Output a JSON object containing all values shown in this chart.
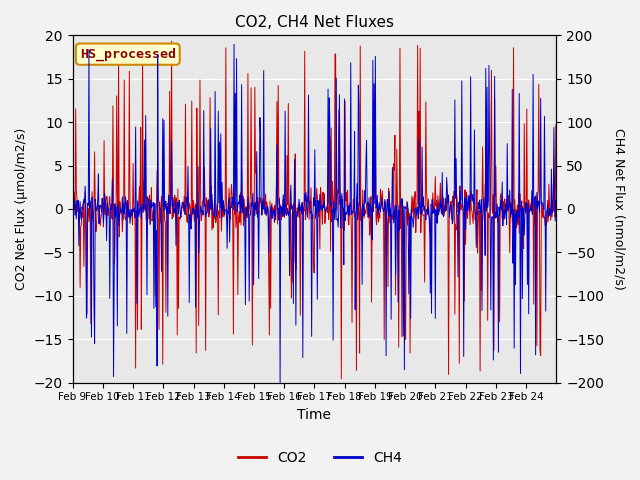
{
  "title": "CO2, CH4 Net Fluxes",
  "xlabel": "Time",
  "ylabel_left": "CO2 Net Flux (μmol/m2/s)",
  "ylabel_right": "CH4 Net Flux (nmol/m2/s)",
  "annotation": "HS_processed",
  "ylim_left": [
    -20,
    20
  ],
  "ylim_right": [
    -200,
    200
  ],
  "yticks_left": [
    -20,
    -15,
    -10,
    -5,
    0,
    5,
    10,
    15,
    20
  ],
  "yticks_right": [
    -200,
    -150,
    -100,
    -50,
    0,
    50,
    100,
    150,
    200
  ],
  "xtick_labels": [
    "Feb 9",
    "Feb 10",
    "Feb 11",
    "Feb 12",
    "Feb 13",
    "Feb 14",
    "Feb 15",
    "Feb 16",
    "Feb 17",
    "Feb 18",
    "Feb 19",
    "Feb 20",
    "Feb 21",
    "Feb 22",
    "Feb 23",
    "Feb 24"
  ],
  "co2_color": "#CC0000",
  "ch4_color": "#0000CC",
  "background_color": "#E8E8E8",
  "fig_background": "#F2F2F2",
  "legend_co2": "CO2",
  "legend_ch4": "CH4",
  "seed": 42,
  "n_days": 16,
  "pts_per_day": 48
}
